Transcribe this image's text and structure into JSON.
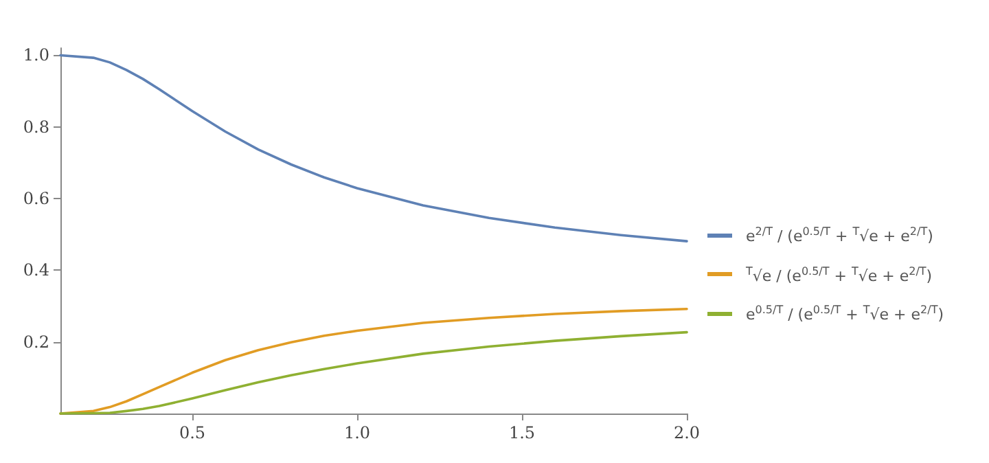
{
  "chart_data": {
    "type": "line",
    "x": [
      0.1,
      0.2,
      0.25,
      0.3,
      0.35,
      0.4,
      0.5,
      0.6,
      0.7,
      0.8,
      0.9,
      1.0,
      1.2,
      1.4,
      1.6,
      1.8,
      2.0
    ],
    "series": [
      {
        "name": "e$^{2/T}$ / (e$^{0.5/T}$ + $^{T}$√e + e$^{2/T}$)",
        "color": "#5e81b5",
        "values": [
          1.0,
          0.993,
          0.98,
          0.959,
          0.934,
          0.905,
          0.844,
          0.787,
          0.737,
          0.695,
          0.659,
          0.629,
          0.581,
          0.546,
          0.519,
          0.498,
          0.481
        ]
      },
      {
        "name": "$^{T}$√e / (e$^{0.5/T}$ + $^{T}$√e + e$^{2/T}$)",
        "color": "#e19c24",
        "values": [
          0.0,
          0.007,
          0.018,
          0.034,
          0.054,
          0.074,
          0.114,
          0.149,
          0.177,
          0.199,
          0.217,
          0.231,
          0.253,
          0.267,
          0.278,
          0.286,
          0.292
        ]
      },
      {
        "name": "e$^{0.5/T}$ / (e$^{0.5/T}$ + $^{T}$√e + e$^{2/T}$)",
        "color": "#8fb032",
        "values": [
          0.0,
          0.001,
          0.002,
          0.007,
          0.013,
          0.021,
          0.042,
          0.065,
          0.087,
          0.107,
          0.124,
          0.14,
          0.167,
          0.187,
          0.203,
          0.216,
          0.227
        ]
      }
    ],
    "xlim": [
      0.1,
      2.0
    ],
    "ylim": [
      0,
      1.02
    ],
    "xticks": [
      {
        "value": 0.5,
        "label": "0.5"
      },
      {
        "value": 1.0,
        "label": "1.0"
      },
      {
        "value": 1.5,
        "label": "1.5"
      },
      {
        "value": 2.0,
        "label": "2.0"
      }
    ],
    "yticks": [
      {
        "value": 0.2,
        "label": "0.2"
      },
      {
        "value": 0.4,
        "label": "0.4"
      },
      {
        "value": 0.6,
        "label": "0.6"
      },
      {
        "value": 0.8,
        "label": "0.8"
      },
      {
        "value": 1.0,
        "label": "1.0"
      }
    ],
    "grid": false,
    "legend": "right",
    "marker": "none",
    "line_style": "solid"
  }
}
